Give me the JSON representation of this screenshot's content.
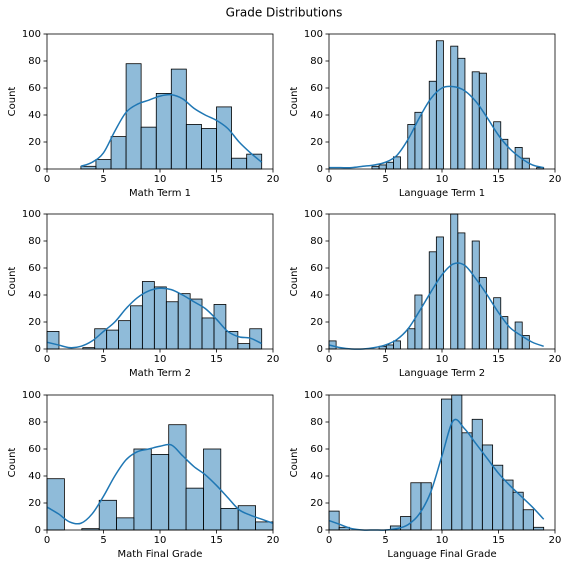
{
  "title": "Grade Distributions",
  "chart_data": [
    {
      "type": "histogram",
      "xlabel": "Math Term 1",
      "ylabel": "Count",
      "color": "#1f77b4",
      "bins": [
        3,
        4.33,
        5.67,
        7,
        8.33,
        9.67,
        11,
        12.33,
        13.67,
        15,
        16.33,
        17.67,
        19
      ],
      "values": [
        2,
        7,
        24,
        78,
        31,
        56,
        74,
        33,
        30,
        46,
        8,
        11
      ],
      "kde": {
        "x": [
          3,
          4,
          5,
          6,
          7,
          8,
          9,
          10,
          11,
          12,
          13,
          14,
          15,
          16,
          17,
          18,
          19
        ],
        "y": [
          2,
          5,
          12,
          28,
          42,
          48,
          51,
          54,
          55,
          52,
          45,
          40,
          36,
          30,
          20,
          12,
          5
        ]
      },
      "xlim": [
        0,
        20
      ],
      "xticks": [
        0,
        5,
        10,
        15,
        20
      ],
      "ylim": [
        0,
        100
      ],
      "yticks": [
        0,
        20,
        40,
        60,
        80,
        100
      ]
    },
    {
      "type": "histogram",
      "xlabel": "Language Term 1",
      "ylabel": "Count",
      "color": "#1f77b4",
      "bins": [
        0,
        0.63,
        1.27,
        1.9,
        2.53,
        3.17,
        3.8,
        4.43,
        5.07,
        5.7,
        6.33,
        6.97,
        7.6,
        8.23,
        8.87,
        9.5,
        10.13,
        10.77,
        11.4,
        12.03,
        12.67,
        13.3,
        13.93,
        14.57,
        15.2,
        15.83,
        16.47,
        17.1,
        17.73,
        18.37,
        19
      ],
      "values": [
        0,
        0,
        0,
        0,
        0,
        0,
        2,
        3,
        5,
        9,
        0,
        33,
        42,
        0,
        65,
        95,
        0,
        91,
        82,
        0,
        72,
        71,
        0,
        35,
        22,
        0,
        16,
        8,
        0,
        1
      ],
      "kde": {
        "x": [
          0,
          1,
          2,
          3,
          4,
          5,
          6,
          7,
          8,
          9,
          10,
          11,
          12,
          13,
          14,
          15,
          16,
          17,
          18,
          19
        ],
        "y": [
          1,
          1,
          1,
          2,
          3,
          5,
          10,
          22,
          38,
          52,
          60,
          61,
          58,
          50,
          38,
          25,
          15,
          8,
          3,
          1
        ]
      },
      "xlim": [
        0,
        20
      ],
      "xticks": [
        0,
        5,
        10,
        15,
        20
      ],
      "ylim": [
        0,
        100
      ],
      "yticks": [
        0,
        20,
        40,
        60,
        80,
        100
      ]
    },
    {
      "type": "histogram",
      "xlabel": "Math Term 2",
      "ylabel": "Count",
      "color": "#1f77b4",
      "bins": [
        0,
        1.06,
        2.11,
        3.17,
        4.22,
        5.28,
        6.33,
        7.39,
        8.44,
        9.5,
        10.56,
        11.61,
        12.67,
        13.72,
        14.78,
        15.83,
        16.89,
        17.94,
        19
      ],
      "values": [
        13,
        0,
        0,
        1,
        15,
        14,
        21,
        32,
        50,
        46,
        35,
        41,
        37,
        23,
        33,
        13,
        4,
        15
      ],
      "kde": {
        "x": [
          0,
          1,
          2,
          3,
          4,
          5,
          6,
          7,
          8,
          9,
          10,
          11,
          12,
          13,
          14,
          15,
          16,
          17,
          18,
          19
        ],
        "y": [
          5,
          3,
          1,
          2,
          6,
          13,
          20,
          30,
          38,
          43,
          45,
          44,
          40,
          35,
          30,
          22,
          13,
          9,
          8,
          4
        ]
      },
      "xlim": [
        0,
        20
      ],
      "xticks": [
        0,
        5,
        10,
        15,
        20
      ],
      "ylim": [
        0,
        100
      ],
      "yticks": [
        0,
        20,
        40,
        60,
        80,
        100
      ]
    },
    {
      "type": "histogram",
      "xlabel": "Language Term 2",
      "ylabel": "Count",
      "color": "#1f77b4",
      "bins": [
        0,
        0.63,
        1.27,
        1.9,
        2.53,
        3.17,
        3.8,
        4.43,
        5.07,
        5.7,
        6.33,
        6.97,
        7.6,
        8.23,
        8.87,
        9.5,
        10.13,
        10.77,
        11.4,
        12.03,
        12.67,
        13.3,
        13.93,
        14.57,
        15.2,
        15.83,
        16.47,
        17.1,
        17.73,
        18.37,
        19
      ],
      "values": [
        6,
        0,
        0,
        0,
        0,
        0,
        0,
        2,
        3,
        6,
        0,
        15,
        40,
        0,
        72,
        83,
        0,
        100,
        86,
        0,
        80,
        53,
        0,
        38,
        24,
        0,
        20,
        10,
        0,
        0
      ],
      "kde": {
        "x": [
          0,
          1,
          2,
          3,
          4,
          5,
          6,
          7,
          8,
          9,
          10,
          11,
          12,
          13,
          14,
          15,
          16,
          17,
          18,
          19
        ],
        "y": [
          3,
          1,
          0,
          0,
          1,
          3,
          7,
          15,
          28,
          42,
          55,
          63,
          62,
          52,
          40,
          27,
          16,
          10,
          5,
          2
        ]
      },
      "xlim": [
        0,
        20
      ],
      "xticks": [
        0,
        5,
        10,
        15,
        20
      ],
      "ylim": [
        0,
        100
      ],
      "yticks": [
        0,
        20,
        40,
        60,
        80,
        100
      ]
    },
    {
      "type": "histogram",
      "xlabel": "Math Final Grade",
      "ylabel": "Count",
      "color": "#1f77b4",
      "bins": [
        0,
        1.54,
        3.08,
        4.62,
        6.15,
        7.69,
        9.23,
        10.77,
        12.31,
        13.85,
        15.38,
        16.92,
        18.46,
        20
      ],
      "values": [
        38,
        0,
        1,
        22,
        9,
        60,
        56,
        78,
        31,
        60,
        16,
        18,
        6
      ],
      "kde": {
        "x": [
          0,
          1,
          2,
          3,
          4,
          5,
          6,
          7,
          8,
          9,
          10,
          11,
          12,
          13,
          14,
          15,
          16,
          17,
          18,
          19,
          20
        ],
        "y": [
          17,
          12,
          6,
          5,
          12,
          25,
          40,
          52,
          58,
          60,
          62,
          63,
          55,
          47,
          41,
          33,
          24,
          15,
          11,
          8,
          5
        ]
      },
      "xlim": [
        0,
        20
      ],
      "xticks": [
        0,
        5,
        10,
        15,
        20
      ],
      "ylim": [
        0,
        100
      ],
      "yticks": [
        0,
        20,
        40,
        60,
        80,
        100
      ]
    },
    {
      "type": "histogram",
      "xlabel": "Language Final Grade",
      "ylabel": "Count",
      "color": "#1f77b4",
      "bins": [
        0,
        0.9,
        1.81,
        2.71,
        3.62,
        4.52,
        5.43,
        6.33,
        7.24,
        8.14,
        9.05,
        9.95,
        10.86,
        11.76,
        12.67,
        13.57,
        14.48,
        15.38,
        16.29,
        17.19,
        18.1,
        19
      ],
      "values": [
        14,
        2,
        0,
        0,
        0,
        0,
        3,
        10,
        35,
        35,
        0,
        97,
        100,
        72,
        82,
        63,
        48,
        37,
        28,
        15,
        2
      ],
      "kde": {
        "x": [
          0,
          1,
          2,
          3,
          4,
          5,
          6,
          7,
          8,
          9,
          10,
          11,
          12,
          13,
          14,
          15,
          16,
          17,
          18,
          19
        ],
        "y": [
          7,
          4,
          1,
          0,
          0,
          0,
          1,
          4,
          12,
          28,
          55,
          81,
          75,
          64,
          53,
          42,
          33,
          25,
          17,
          8
        ]
      },
      "xlim": [
        0,
        20
      ],
      "xticks": [
        0,
        5,
        10,
        15,
        20
      ],
      "ylim": [
        0,
        100
      ],
      "yticks": [
        0,
        20,
        40,
        60,
        80,
        100
      ]
    }
  ]
}
